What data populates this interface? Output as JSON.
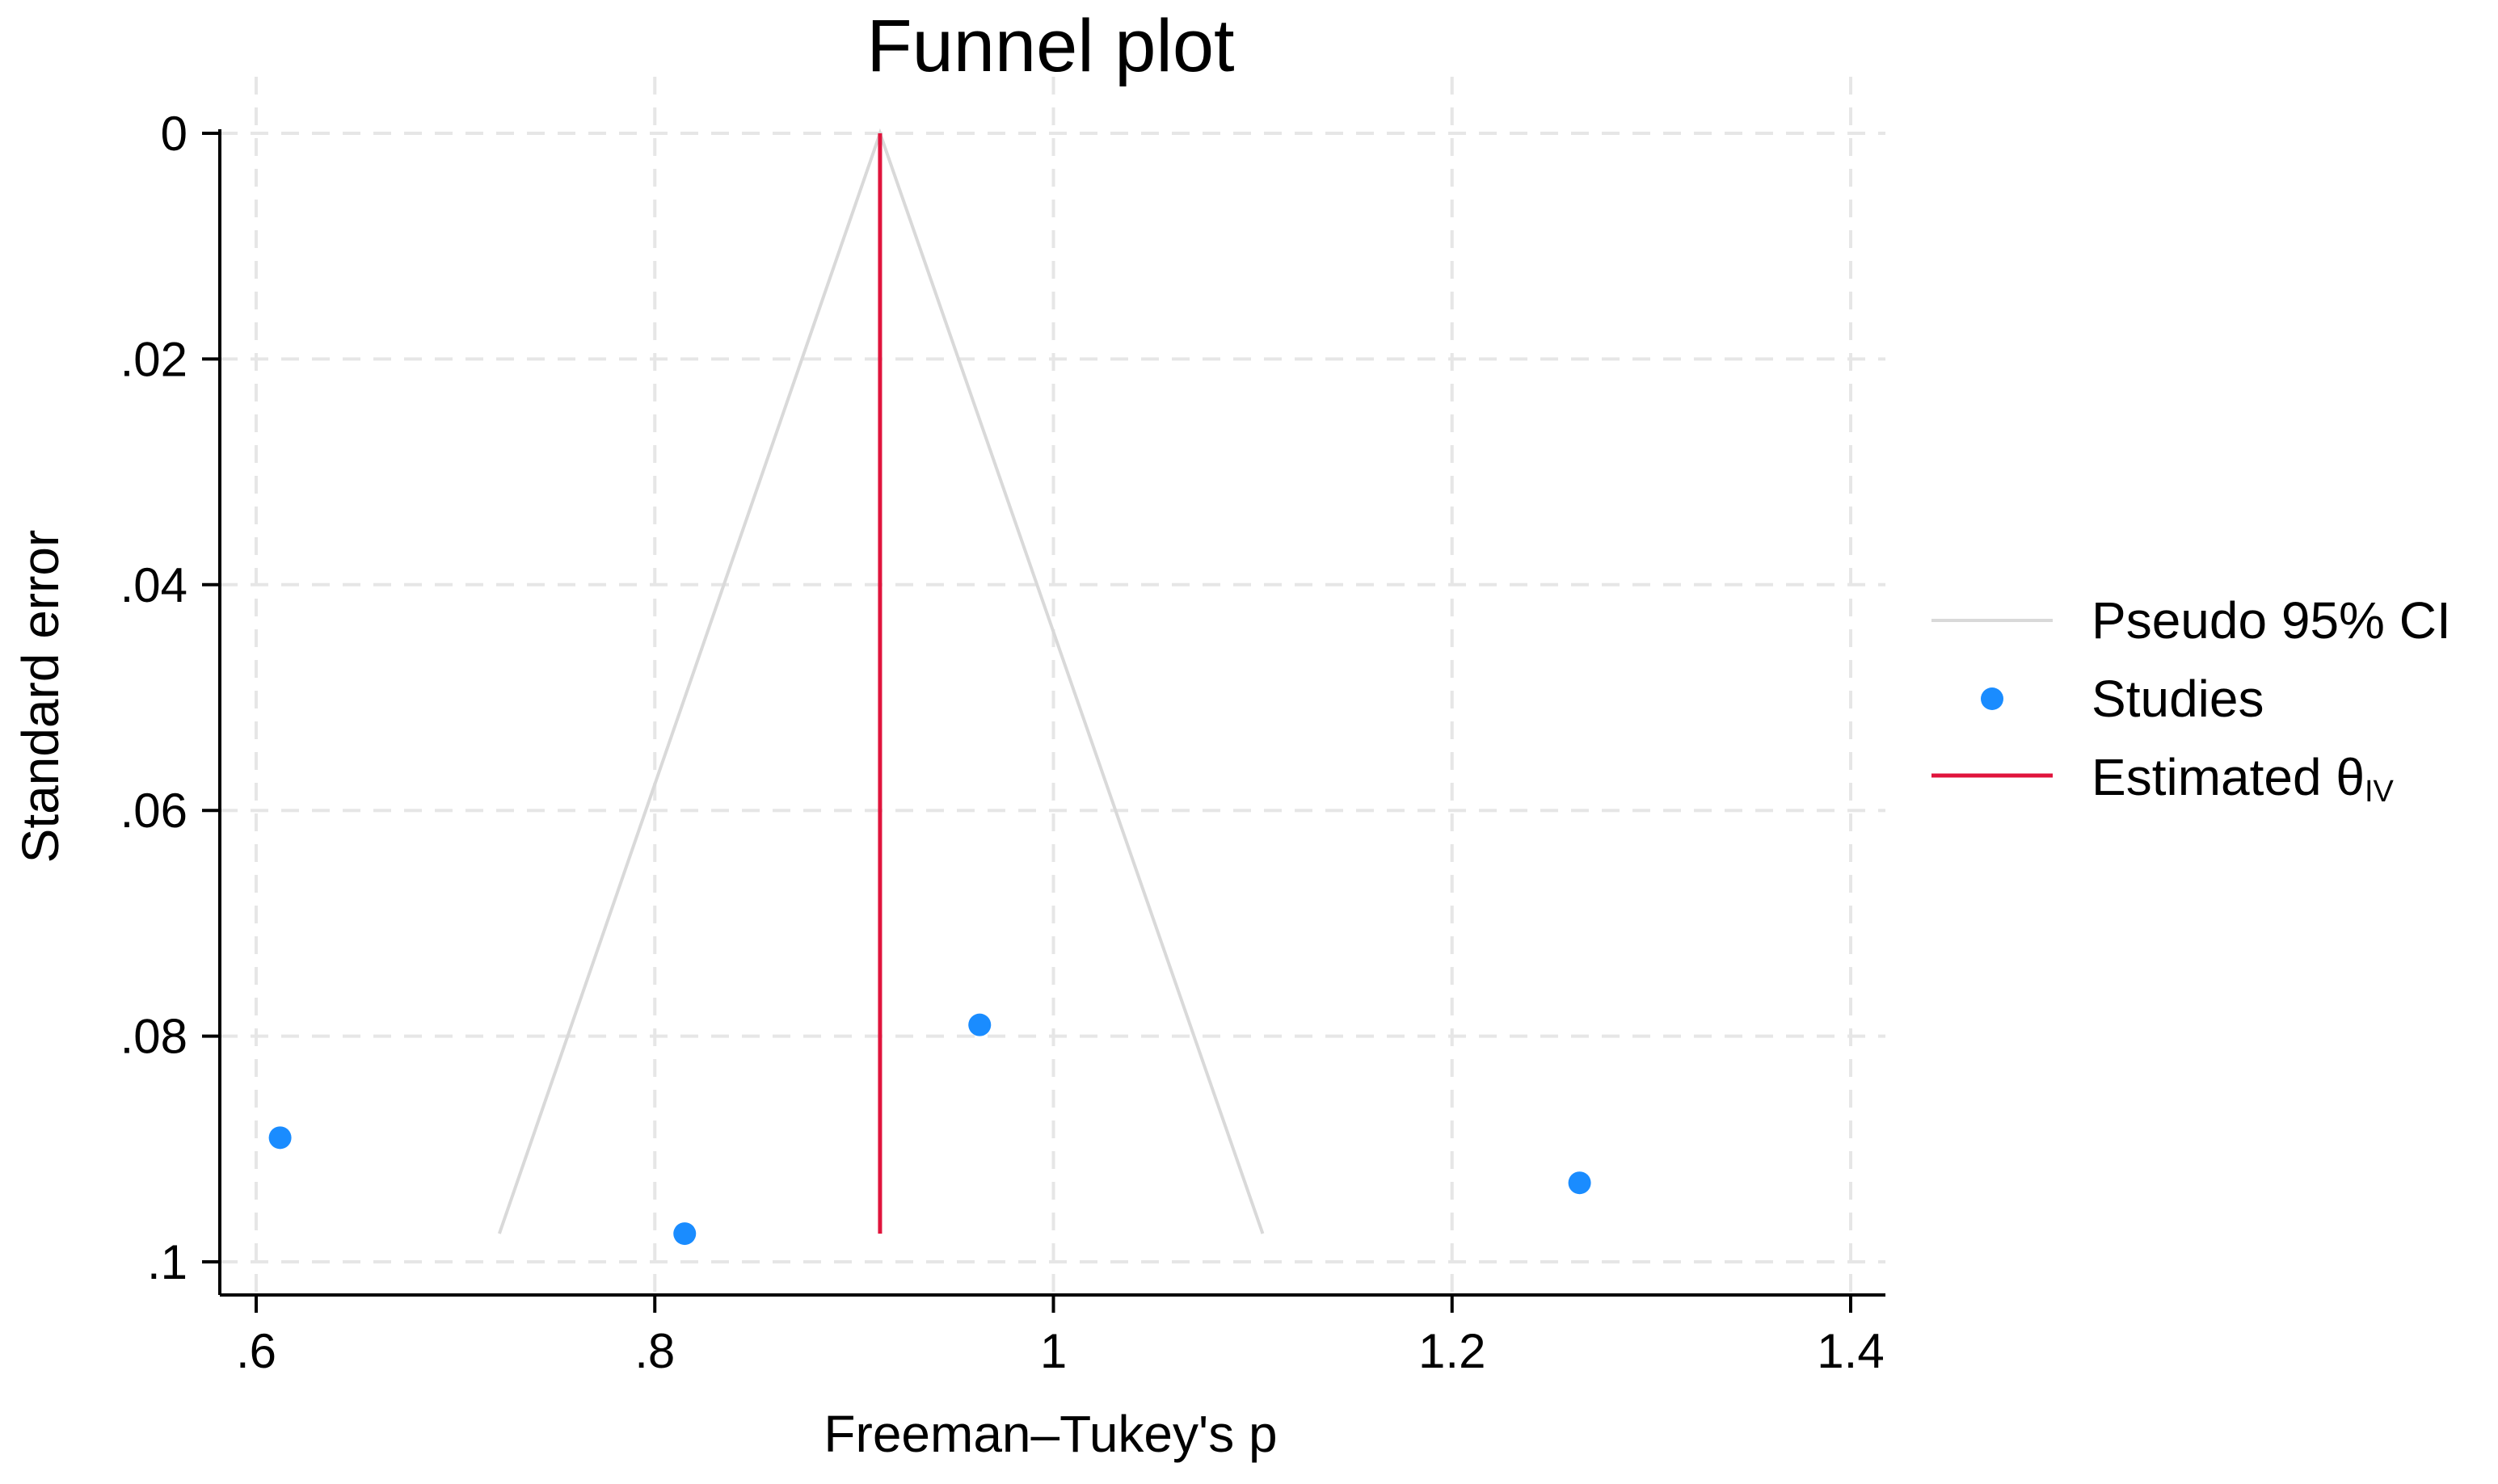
{
  "chart_data": {
    "type": "scatter",
    "title": "Funnel plot",
    "xlabel": "Freeman–Tukey's p",
    "ylabel": "Standard error",
    "xlim": [
      0.6,
      1.4
    ],
    "ylim": [
      0,
      0.1
    ],
    "y_reversed": true,
    "xticks": [
      {
        "value": 0.6,
        "label": ".6"
      },
      {
        "value": 0.8,
        "label": ".8"
      },
      {
        "value": 1.0,
        "label": "1"
      },
      {
        "value": 1.2,
        "label": "1.2"
      },
      {
        "value": 1.4,
        "label": "1.4"
      }
    ],
    "yticks": [
      {
        "value": 0,
        "label": "0"
      },
      {
        "value": 0.02,
        "label": ".02"
      },
      {
        "value": 0.04,
        "label": ".04"
      },
      {
        "value": 0.06,
        "label": ".06"
      },
      {
        "value": 0.08,
        "label": ".08"
      },
      {
        "value": 0.1,
        "label": ".1"
      }
    ],
    "grid": true,
    "legend_position": "right",
    "series": [
      {
        "name": "Studies",
        "type": "scatter",
        "color": "#1a8cff",
        "points": [
          {
            "x": 0.612,
            "y": 0.089
          },
          {
            "x": 0.815,
            "y": 0.0975
          },
          {
            "x": 0.963,
            "y": 0.079
          },
          {
            "x": 1.264,
            "y": 0.093
          }
        ]
      },
      {
        "name": "Pseudo 95% CI",
        "type": "line",
        "color": "#d9d9d9",
        "points": [
          {
            "x": 0.722,
            "y": 0.0975
          },
          {
            "x": 0.913,
            "y": 0
          },
          {
            "x": 1.105,
            "y": 0.0975
          }
        ]
      },
      {
        "name": "Estimated θ",
        "subscript": "IV",
        "type": "line",
        "color": "#e0143c",
        "points": [
          {
            "x": 0.913,
            "y": 0
          },
          {
            "x": 0.913,
            "y": 0.0975
          }
        ]
      }
    ]
  }
}
